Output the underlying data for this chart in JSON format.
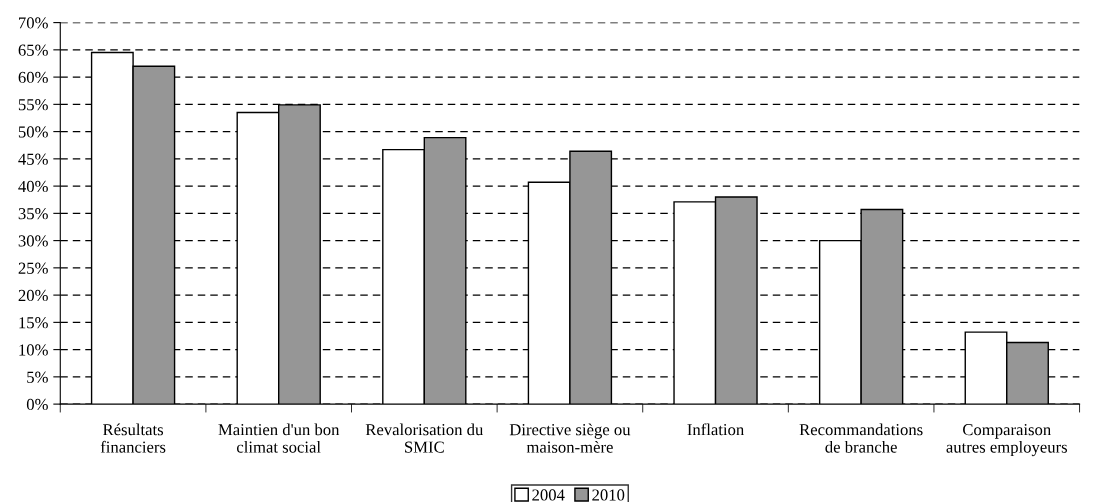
{
  "chart_data": {
    "type": "bar",
    "categories": [
      "Résultats\nfinanciers",
      "Maintien d'un bon\nclimat social",
      "Revalorisation du\nSMIC",
      "Directive siège ou\nmaison-mère",
      "Inflation",
      "Recommandations\nde branche",
      "Comparaison\nautres employeurs"
    ],
    "series": [
      {
        "name": "2004",
        "color": "#ffffff",
        "values": [
          64.5,
          53.5,
          46.7,
          40.7,
          37.1,
          30.0,
          13.2
        ]
      },
      {
        "name": "2010",
        "color": "#969696",
        "values": [
          62.0,
          54.9,
          48.9,
          46.4,
          38.0,
          35.7,
          11.3
        ]
      }
    ],
    "ylim": [
      0,
      70
    ],
    "yticks": [
      {
        "value": 0,
        "label": "0%"
      },
      {
        "value": 5,
        "label": "5%"
      },
      {
        "value": 10,
        "label": "10%"
      },
      {
        "value": 15,
        "label": "15%"
      },
      {
        "value": 20,
        "label": "20%"
      },
      {
        "value": 25,
        "label": "25%"
      },
      {
        "value": 30,
        "label": "30%"
      },
      {
        "value": 35,
        "label": "35%"
      },
      {
        "value": 40,
        "label": "40%"
      },
      {
        "value": 45,
        "label": "45%"
      },
      {
        "value": 50,
        "label": "50%"
      },
      {
        "value": 55,
        "label": "55%"
      },
      {
        "value": 60,
        "label": "60%"
      },
      {
        "value": 65,
        "label": "65%"
      },
      {
        "value": 70,
        "label": "70%"
      }
    ],
    "grid": "y",
    "legend": "bottom"
  }
}
